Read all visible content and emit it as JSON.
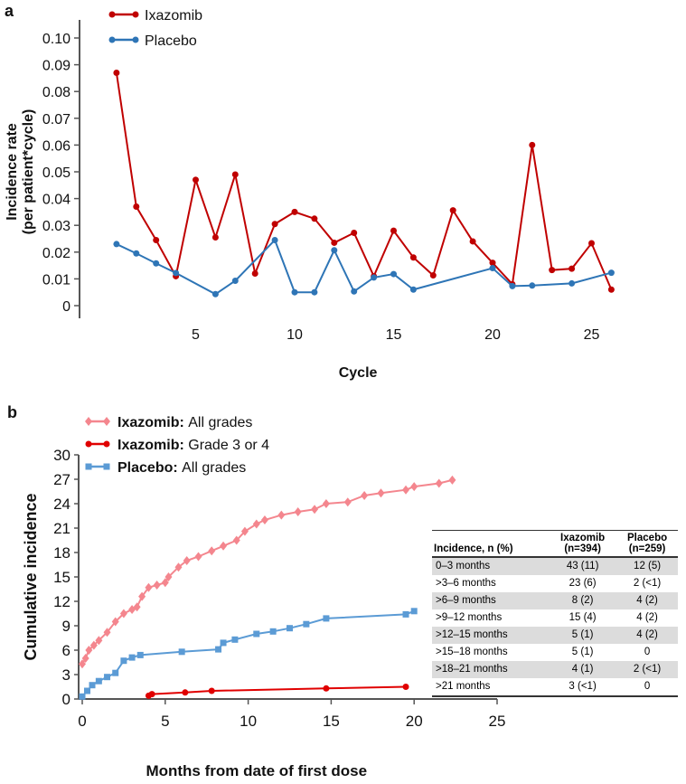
{
  "chart_data": [
    {
      "panel": "a",
      "type": "line",
      "xlabel": "Cycle",
      "ylabel": "Incidence rate (per patient*cycle)",
      "ylabel_lines": [
        "Incidence rate",
        "(per patient*cycle)"
      ],
      "xlim": [
        0,
        26.5
      ],
      "ylim": [
        0,
        0.1
      ],
      "xticks": [
        5,
        10,
        15,
        20,
        25
      ],
      "yticks": [
        "0",
        "0.01",
        "0.02",
        "0.03",
        "0.04",
        "0.05",
        "0.06",
        "0.07",
        "0.08",
        "0.09",
        "0.10"
      ],
      "legend_position": "top-left",
      "series": [
        {
          "name": "Ixazomib",
          "color": "#c00000",
          "x": [
            1,
            2,
            3,
            4,
            5,
            6,
            7,
            8,
            9,
            10,
            11,
            12,
            13,
            14,
            15,
            16,
            17,
            18,
            19,
            20,
            21,
            22,
            23,
            24,
            25,
            26
          ],
          "y": [
            0.087,
            0.037,
            0.0245,
            0.011,
            0.047,
            0.0255,
            0.049,
            0.012,
            0.0305,
            0.035,
            0.0325,
            0.0235,
            0.0272,
            0.011,
            0.028,
            0.018,
            0.0113,
            0.0356,
            0.024,
            0.016,
            0.008,
            0.06,
            0.0133,
            0.0138,
            0.0233,
            0.006
          ]
        },
        {
          "name": "Placebo",
          "color": "#2e75b6",
          "x": [
            1,
            2,
            3,
            4,
            6,
            7,
            9,
            10,
            11,
            12,
            13,
            14,
            15,
            16,
            20,
            21,
            22,
            24,
            26
          ],
          "y": [
            0.023,
            0.0195,
            0.0158,
            0.0122,
            0.0043,
            0.0093,
            0.0245,
            0.005,
            0.005,
            0.0207,
            0.0053,
            0.0105,
            0.0118,
            0.006,
            0.014,
            0.0073,
            0.0075,
            0.0083,
            0.0123
          ]
        }
      ]
    },
    {
      "panel": "b",
      "type": "line",
      "xlabel": "Months from date of first dose",
      "ylabel": "Cumulative incidence",
      "xlim": [
        0,
        25
      ],
      "ylim": [
        0,
        30
      ],
      "xticks": [
        "0",
        "5",
        "10",
        "15",
        "20",
        "25"
      ],
      "yticks": [
        "0",
        "3",
        "6",
        "9",
        "12",
        "15",
        "18",
        "21",
        "24",
        "27",
        "30"
      ],
      "legend_position": "top-left",
      "series": [
        {
          "name": "Ixazomib: All grades",
          "bold": "Ixazomib:",
          "rest": " All grades",
          "color": "#f4868e",
          "marker": "diamond",
          "x": [
            0,
            0.2,
            0.4,
            0.7,
            1,
            1.5,
            2,
            2.5,
            3,
            3.3,
            3.6,
            4,
            4.5,
            5,
            5.2,
            5.8,
            6.3,
            7,
            7.8,
            8.5,
            9.3,
            9.8,
            10.5,
            11,
            12,
            13,
            14,
            14.7,
            16,
            17,
            18,
            19.5,
            20,
            21.5,
            22.3
          ],
          "y": [
            4.3,
            5,
            6,
            6.6,
            7.2,
            8.2,
            9.5,
            10.5,
            11,
            11.3,
            12.6,
            13.7,
            14,
            14.3,
            15,
            16.2,
            17,
            17.5,
            18.2,
            18.8,
            19.5,
            20.6,
            21.5,
            22,
            22.6,
            23,
            23.3,
            24,
            24.2,
            25,
            25.3,
            25.7,
            26.1,
            26.5,
            26.9
          ]
        },
        {
          "name": "Ixazomib: Grade 3 or 4",
          "bold": "Ixazomib:",
          "rest": " Grade 3 or 4",
          "color": "#e00000",
          "marker": "circle",
          "x": [
            4,
            4.2,
            6.2,
            7.8,
            14.7,
            19.5
          ],
          "y": [
            0.4,
            0.6,
            0.8,
            1.0,
            1.3,
            1.5
          ]
        },
        {
          "name": "Placebo: All grades",
          "bold": "Placebo:",
          "rest": " All grades",
          "color": "#5b9bd5",
          "marker": "square",
          "x": [
            0,
            0.3,
            0.6,
            1,
            1.5,
            2,
            2.5,
            3,
            3.5,
            6,
            8.2,
            8.5,
            9.2,
            10.5,
            11.5,
            12.5,
            13.5,
            14.7,
            19.5,
            20
          ],
          "y": [
            0.3,
            1,
            1.7,
            2.2,
            2.7,
            3.2,
            4.7,
            5.1,
            5.4,
            5.8,
            6.1,
            6.9,
            7.3,
            8,
            8.3,
            8.7,
            9.2,
            9.9,
            10.4,
            10.8
          ]
        }
      ]
    }
  ],
  "panel_labels": {
    "a": "a",
    "b": "b"
  },
  "table": {
    "headers": [
      "Incidence, n (%)",
      "Ixazomib",
      "(n=394)",
      "Placebo",
      "(n=259)"
    ],
    "rows": [
      [
        "0–3 months",
        "43 (11)",
        "12 (5)"
      ],
      [
        ">3–6 months",
        "23 (6)",
        "2 (<1)"
      ],
      [
        ">6–9 months",
        "8 (2)",
        "4 (2)"
      ],
      [
        ">9–12 months",
        "15 (4)",
        "4 (2)"
      ],
      [
        ">12–15 months",
        "5 (1)",
        "4 (2)"
      ],
      [
        ">15–18 months",
        "5 (1)",
        "0"
      ],
      [
        ">18–21 months",
        "4 (1)",
        "2 (<1)"
      ],
      [
        ">21 months",
        "3 (<1)",
        "0"
      ]
    ]
  }
}
